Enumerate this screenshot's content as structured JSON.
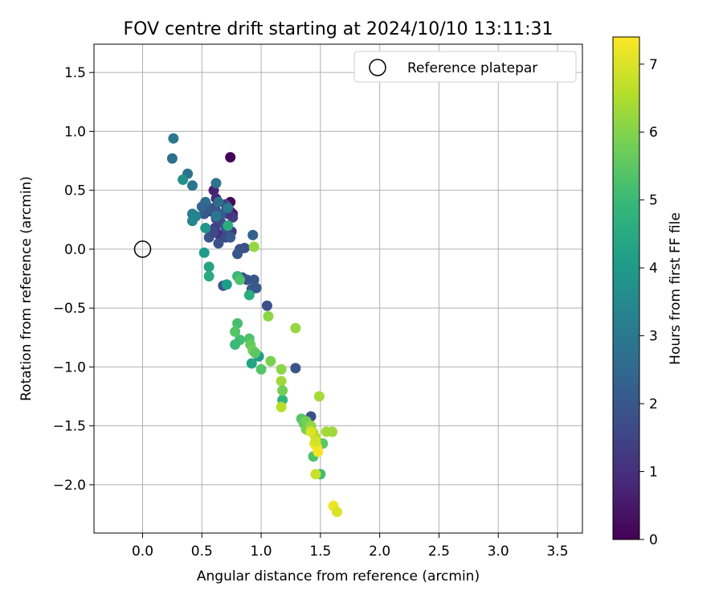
{
  "chart_data": {
    "type": "scatter",
    "title": "FOV centre drift starting at 2024/10/10 13:11:31",
    "xlabel": "Angular distance from reference (arcmin)",
    "ylabel": "Rotation from reference (arcmin)",
    "xlim": [
      -0.41,
      3.71
    ],
    "ylim": [
      -2.41,
      1.74
    ],
    "xticks": [
      0.0,
      0.5,
      1.0,
      1.5,
      2.0,
      2.5,
      3.0,
      3.5
    ],
    "xtick_labels": [
      "0.0",
      "0.5",
      "1.0",
      "1.5",
      "2.0",
      "2.5",
      "3.0",
      "3.5"
    ],
    "yticks": [
      1.5,
      1.0,
      0.5,
      0.0,
      -0.5,
      -1.0,
      -1.5,
      -2.0
    ],
    "ytick_labels": [
      "1.5",
      "1.0",
      "0.5",
      "0.0",
      "−0.5",
      "−1.0",
      "−1.5",
      "−2.0"
    ],
    "grid": true,
    "legend": {
      "position": "top-right",
      "entries": [
        {
          "label": "Reference platepar",
          "marker": "open-circle"
        }
      ]
    },
    "reference_point": {
      "x": 0.0,
      "y": 0.0
    },
    "colorbar": {
      "label": "Hours from first FF file",
      "range": [
        0,
        7.4
      ],
      "ticks": [
        0,
        1,
        2,
        3,
        4,
        5,
        6,
        7
      ],
      "tick_labels": [
        "0",
        "1",
        "2",
        "3",
        "4",
        "5",
        "6",
        "7"
      ],
      "colormap": "viridis"
    },
    "colormap_stops": [
      "#440154",
      "#482878",
      "#3e4a89",
      "#31688e",
      "#26828e",
      "#1f9e89",
      "#35b779",
      "#6ece58",
      "#b5de2b",
      "#fde725"
    ],
    "points": [
      [
        0.74,
        0.78,
        0.05
      ],
      [
        0.74,
        0.4,
        0.1
      ],
      [
        0.74,
        0.32,
        0.2
      ],
      [
        0.6,
        0.5,
        0.7
      ],
      [
        0.62,
        0.43,
        0.9
      ],
      [
        0.76,
        0.3,
        0.6
      ],
      [
        0.61,
        0.35,
        1.2
      ],
      [
        0.58,
        0.32,
        1.4
      ],
      [
        0.62,
        0.26,
        1.6
      ],
      [
        0.66,
        0.23,
        1.7
      ],
      [
        0.7,
        0.32,
        1.0
      ],
      [
        0.76,
        0.27,
        1.3
      ],
      [
        0.7,
        0.38,
        1.5
      ],
      [
        0.72,
        0.3,
        1.2
      ],
      [
        0.61,
        0.18,
        1.5
      ],
      [
        0.65,
        0.12,
        1.0
      ],
      [
        0.75,
        0.15,
        1.3
      ],
      [
        0.7,
        0.1,
        1.6
      ],
      [
        0.64,
        0.05,
        1.8
      ],
      [
        0.56,
        0.1,
        1.9
      ],
      [
        0.6,
        0.14,
        1.6
      ],
      [
        0.52,
        0.3,
        2.0
      ],
      [
        0.55,
        0.36,
        2.1
      ],
      [
        0.6,
        0.33,
        2.0
      ],
      [
        0.66,
        0.3,
        2.2
      ],
      [
        0.7,
        0.18,
        2.0
      ],
      [
        0.74,
        0.1,
        2.1
      ],
      [
        0.82,
        0.0,
        1.9
      ],
      [
        0.8,
        -0.04,
        2.0
      ],
      [
        0.86,
        0.01,
        1.8
      ],
      [
        0.84,
        -0.24,
        2.0
      ],
      [
        0.88,
        -0.26,
        1.9
      ],
      [
        0.94,
        -0.26,
        2.0
      ],
      [
        0.92,
        -0.34,
        2.1
      ],
      [
        0.96,
        -0.33,
        2.0
      ],
      [
        0.68,
        -0.31,
        1.9
      ],
      [
        0.93,
        0.12,
        2.3
      ],
      [
        1.05,
        -0.48,
        1.8
      ],
      [
        1.29,
        -1.01,
        1.9
      ],
      [
        1.42,
        -1.42,
        1.8
      ],
      [
        0.26,
        0.94,
        3.0
      ],
      [
        0.25,
        0.77,
        2.7
      ],
      [
        0.38,
        0.64,
        2.8
      ],
      [
        0.42,
        0.54,
        2.9
      ],
      [
        0.62,
        0.56,
        2.8
      ],
      [
        0.64,
        0.4,
        2.7
      ],
      [
        0.53,
        0.4,
        2.6
      ],
      [
        0.5,
        0.36,
        2.4
      ],
      [
        0.62,
        0.28,
        2.9
      ],
      [
        0.72,
        0.35,
        3.0
      ],
      [
        0.42,
        0.3,
        3.2
      ],
      [
        0.45,
        0.28,
        3.3
      ],
      [
        0.42,
        0.24,
        3.4
      ],
      [
        0.34,
        0.59,
        3.7
      ],
      [
        0.53,
        0.18,
        3.9
      ],
      [
        0.52,
        -0.03,
        4.0
      ],
      [
        0.56,
        -0.15,
        4.3
      ],
      [
        0.56,
        -0.23,
        4.5
      ],
      [
        0.71,
        -0.3,
        4.1
      ],
      [
        0.72,
        0.2,
        4.6
      ],
      [
        0.8,
        -0.23,
        4.9
      ],
      [
        0.82,
        -0.26,
        5.3
      ],
      [
        0.9,
        -0.39,
        4.6
      ],
      [
        0.92,
        -0.97,
        4.3
      ],
      [
        0.98,
        -0.91,
        4.0
      ],
      [
        0.8,
        -0.63,
        5.2
      ],
      [
        0.78,
        -0.7,
        5.4
      ],
      [
        0.82,
        -0.77,
        5.1
      ],
      [
        0.78,
        -0.81,
        5.0
      ],
      [
        0.9,
        -0.76,
        5.3
      ],
      [
        0.91,
        -0.81,
        5.6
      ],
      [
        0.93,
        -0.86,
        5.8
      ],
      [
        0.95,
        -0.88,
        5.5
      ],
      [
        1.0,
        -1.02,
        5.4
      ],
      [
        1.08,
        -0.95,
        5.9
      ],
      [
        1.18,
        -1.28,
        4.8
      ],
      [
        1.17,
        -1.02,
        6.1
      ],
      [
        1.17,
        -1.12,
        6.3
      ],
      [
        1.18,
        -1.2,
        5.8
      ],
      [
        1.17,
        -1.34,
        6.6
      ],
      [
        1.06,
        -0.57,
        6.1
      ],
      [
        1.29,
        -0.67,
        6.2
      ],
      [
        0.94,
        0.02,
        6.2
      ],
      [
        1.34,
        -1.44,
        5.4
      ],
      [
        1.36,
        -1.48,
        5.6
      ],
      [
        1.38,
        -1.46,
        5.8
      ],
      [
        1.4,
        -1.52,
        6.0
      ],
      [
        1.38,
        -1.53,
        5.9
      ],
      [
        1.42,
        -1.5,
        6.2
      ],
      [
        1.44,
        -1.76,
        5.3
      ],
      [
        1.44,
        -1.56,
        6.4
      ],
      [
        1.46,
        -1.6,
        6.6
      ],
      [
        1.49,
        -1.25,
        6.4
      ],
      [
        1.52,
        -1.65,
        5.5
      ],
      [
        1.55,
        -1.55,
        6.4
      ],
      [
        1.6,
        -1.55,
        6.3
      ],
      [
        1.5,
        -1.91,
        5.1
      ],
      [
        1.46,
        -1.91,
        6.8
      ],
      [
        1.42,
        -1.55,
        7.0
      ],
      [
        1.45,
        -1.65,
        7.1
      ],
      [
        1.47,
        -1.68,
        7.2
      ],
      [
        1.46,
        -1.63,
        6.9
      ],
      [
        1.48,
        -1.72,
        7.3
      ],
      [
        1.61,
        -2.18,
        7.2
      ],
      [
        1.64,
        -2.23,
        7.0
      ]
    ]
  }
}
